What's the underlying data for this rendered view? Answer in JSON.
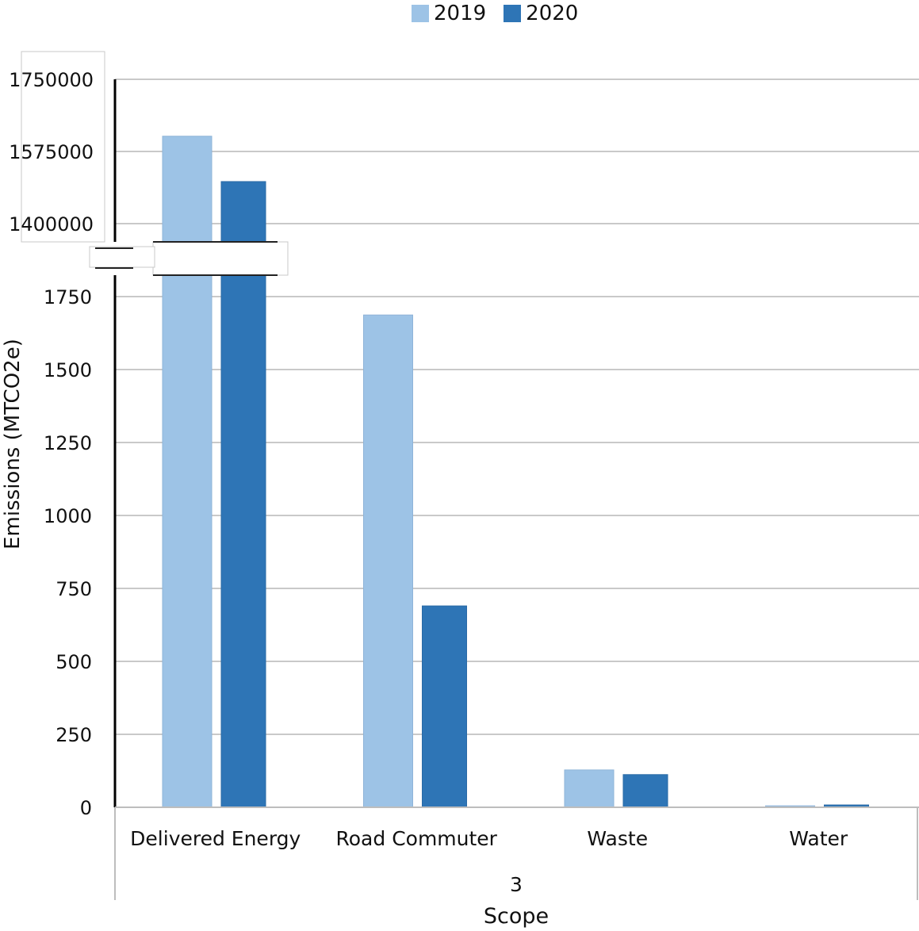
{
  "chart_data": {
    "type": "bar",
    "categories": [
      "Delivered Energy",
      "Road Commuter",
      "Waste",
      "Water"
    ],
    "group_label": "3",
    "xlabel": "Scope",
    "ylabel": "Emissions (MTCO2e)",
    "series": [
      {
        "name": "2019",
        "color": "#9DC3E6",
        "values": [
          1612000,
          1687,
          128,
          5
        ]
      },
      {
        "name": "2020",
        "color": "#2E75B6",
        "values": [
          1502000,
          690,
          112,
          8
        ]
      }
    ],
    "y_axis_broken": true,
    "lower_ticks": [
      "0",
      "250",
      "500",
      "750",
      "1000",
      "1250",
      "1500",
      "1750"
    ],
    "upper_ticks": [
      "1400000",
      "1575000",
      "1750000"
    ],
    "lower_range": [
      0,
      1750
    ],
    "upper_range": [
      1400000,
      1750000
    ],
    "grid": true,
    "legend_position": "top-center"
  }
}
